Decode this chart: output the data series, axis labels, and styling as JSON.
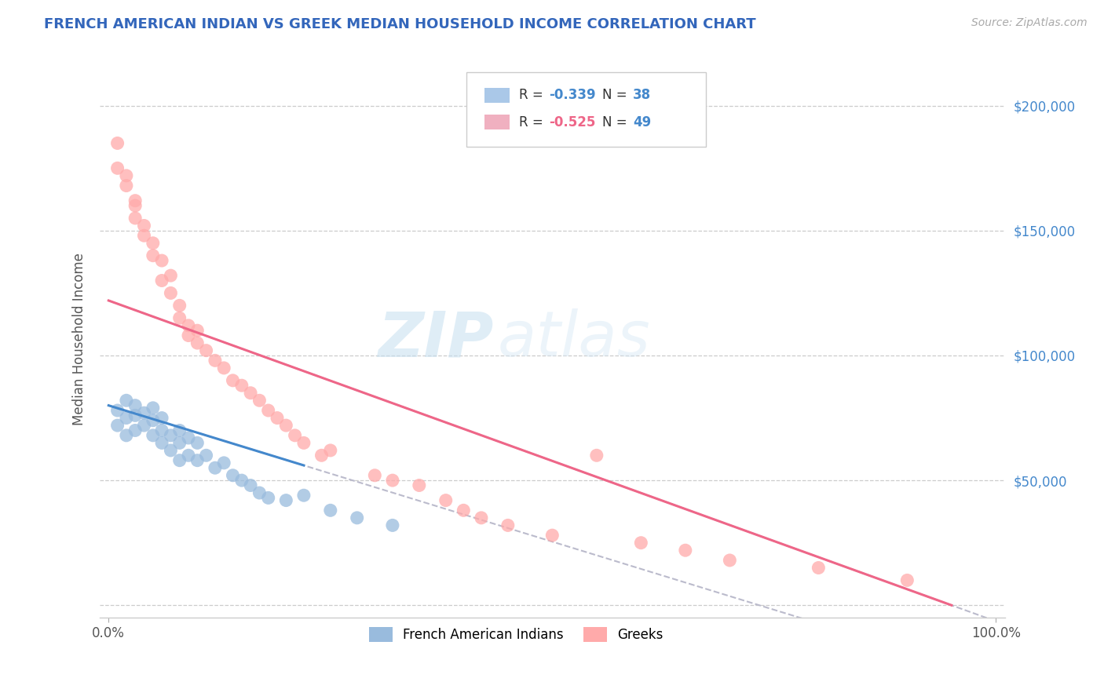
{
  "title": "FRENCH AMERICAN INDIAN VS GREEK MEDIAN HOUSEHOLD INCOME CORRELATION CHART",
  "source": "Source: ZipAtlas.com",
  "ylabel": "Median Household Income",
  "y_ticks": [
    0,
    50000,
    100000,
    150000,
    200000
  ],
  "y_tick_labels": [
    "",
    "$50,000",
    "$100,000",
    "$150,000",
    "$200,000"
  ],
  "xlim": [
    -1,
    101
  ],
  "ylim": [
    -5000,
    218000
  ],
  "blue_r": -0.339,
  "blue_n": 38,
  "pink_r": -0.525,
  "pink_n": 49,
  "blue_scatter_color": "#99bbdd",
  "pink_scatter_color": "#ffaaaa",
  "blue_line_color": "#4488cc",
  "pink_line_color": "#ee6688",
  "dashed_color": "#bbbbcc",
  "title_color": "#3366bb",
  "source_color": "#aaaaaa",
  "right_tick_color": "#4488cc",
  "legend_label_blue": "French American Indians",
  "legend_label_pink": "Greeks",
  "watermark_zip": "ZIP",
  "watermark_atlas": "atlas",
  "blue_line_x0": 0,
  "blue_line_x1": 22,
  "blue_line_y0": 80000,
  "blue_line_y1": 56000,
  "pink_line_x0": 0,
  "pink_line_x1": 95,
  "pink_line_y0": 122000,
  "pink_line_y1": 0,
  "blue_x": [
    1,
    1,
    2,
    2,
    2,
    3,
    3,
    3,
    4,
    4,
    5,
    5,
    5,
    6,
    6,
    6,
    7,
    7,
    8,
    8,
    8,
    9,
    9,
    10,
    10,
    11,
    12,
    13,
    14,
    15,
    16,
    17,
    18,
    20,
    22,
    25,
    28,
    32
  ],
  "blue_y": [
    78000,
    72000,
    82000,
    75000,
    68000,
    80000,
    76000,
    70000,
    77000,
    72000,
    79000,
    74000,
    68000,
    75000,
    70000,
    65000,
    68000,
    62000,
    70000,
    65000,
    58000,
    67000,
    60000,
    65000,
    58000,
    60000,
    55000,
    57000,
    52000,
    50000,
    48000,
    45000,
    43000,
    42000,
    44000,
    38000,
    35000,
    32000
  ],
  "pink_x": [
    1,
    1,
    2,
    2,
    3,
    3,
    3,
    4,
    4,
    5,
    5,
    6,
    6,
    7,
    7,
    8,
    8,
    9,
    9,
    10,
    10,
    11,
    12,
    13,
    14,
    15,
    16,
    17,
    18,
    19,
    20,
    21,
    22,
    24,
    25,
    30,
    32,
    35,
    38,
    40,
    42,
    45,
    50,
    55,
    60,
    65,
    70,
    80,
    90
  ],
  "pink_y": [
    185000,
    175000,
    168000,
    172000,
    160000,
    155000,
    162000,
    152000,
    148000,
    145000,
    140000,
    138000,
    130000,
    132000,
    125000,
    120000,
    115000,
    112000,
    108000,
    105000,
    110000,
    102000,
    98000,
    95000,
    90000,
    88000,
    85000,
    82000,
    78000,
    75000,
    72000,
    68000,
    65000,
    60000,
    62000,
    52000,
    50000,
    48000,
    42000,
    38000,
    35000,
    32000,
    28000,
    60000,
    25000,
    22000,
    18000,
    15000,
    10000
  ]
}
